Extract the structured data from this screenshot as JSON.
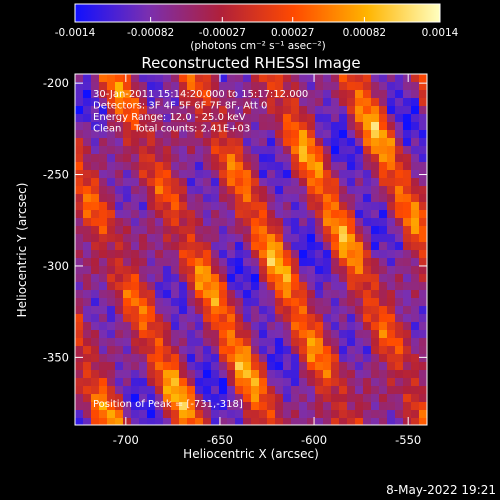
{
  "chart_data": {
    "type": "heatmap",
    "title": "Reconstructed RHESSI Image",
    "xlabel": "Heliocentric X (arcsec)",
    "ylabel": "Heliocentric Y (arcsec)",
    "x_ticks": [
      "-700",
      "-650",
      "-600",
      "-550"
    ],
    "y_ticks": [
      "-200",
      "-250",
      "-300",
      "-350"
    ],
    "x_tick_values": [
      -700,
      -650,
      -600,
      -550
    ],
    "y_tick_values": [
      -200,
      -250,
      -300,
      -350
    ],
    "xlim": [
      -727,
      -540
    ],
    "ylim": [
      -387,
      -195
    ],
    "colorbar": {
      "ticks": [
        "-0.0014",
        "-0.00082",
        "-0.00027",
        "0.00027",
        "0.00082",
        "0.0014"
      ],
      "tick_values": [
        -0.0014,
        -0.00082,
        -0.00027,
        0.00027,
        0.00082,
        0.0014
      ],
      "range": [
        -0.0014,
        0.0014
      ],
      "units": "(photons cm⁻² s⁻¹ asec⁻²)",
      "colors": [
        "#1010ff",
        "#7a2fb0",
        "#b0203a",
        "#ff4a00",
        "#ffb400",
        "#ffffc0"
      ]
    },
    "annotations": [
      "30-Jan-2011 15:14:20.000 to 15:17:12.000",
      "Detectors: 3F 4F 5F 6F 7F 8F, Att 0",
      "Energy Range: 12.0 - 25.0 keV",
      "Clean    Total counts: 2.41E+03"
    ],
    "peak_label": "Position of Peak = [-731,-318]",
    "stripes": {
      "count": 6,
      "period_arcsec": 42,
      "tilt": "diagonal, running top-left to bottom-right"
    }
  },
  "timestamp": "8-May-2022 19:21"
}
